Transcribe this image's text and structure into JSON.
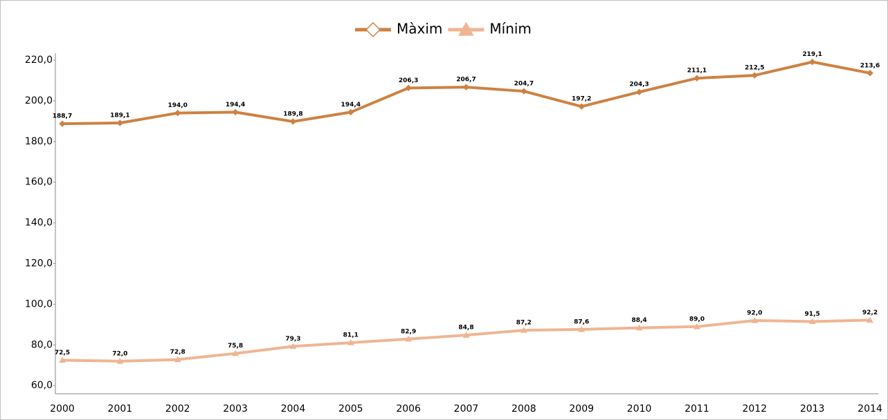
{
  "chart_data": {
    "type": "line",
    "categories": [
      "2000",
      "2001",
      "2002",
      "2003",
      "2004",
      "2005",
      "2006",
      "2007",
      "2008",
      "2009",
      "2010",
      "2011",
      "2012",
      "2013",
      "2014"
    ],
    "series": [
      {
        "name": "Màxim",
        "color": "#cd8142",
        "marker": "diamond",
        "values": [
          188.7,
          189.1,
          194.0,
          194.4,
          189.8,
          194.4,
          206.3,
          206.7,
          204.7,
          197.2,
          204.3,
          211.1,
          212.5,
          219.1,
          213.6
        ],
        "value_labels": [
          "188,7",
          "189,1",
          "194,0",
          "194,4",
          "189,8",
          "194,4",
          "206,3",
          "206,7",
          "204,7",
          "197,2",
          "204,3",
          "211,1",
          "212,5",
          "219,1",
          "213,6"
        ]
      },
      {
        "name": "Mínim",
        "color": "#efb593",
        "marker": "triangle",
        "values": [
          72.5,
          72.0,
          72.8,
          75.8,
          79.3,
          81.1,
          82.9,
          84.8,
          87.2,
          87.6,
          88.4,
          89.0,
          92.0,
          91.5,
          92.2
        ],
        "value_labels": [
          "72,5",
          "72,0",
          "72,8",
          "75,8",
          "79,3",
          "81,1",
          "82,9",
          "84,8",
          "87,2",
          "87,6",
          "88,4",
          "89,0",
          "92,0",
          "91,5",
          "92,2"
        ]
      }
    ],
    "ylim": [
      56,
      220
    ],
    "yticks": [
      {
        "value": 60,
        "label": "60,0"
      },
      {
        "value": 80,
        "label": "80,0"
      },
      {
        "value": 100,
        "label": "100,0"
      },
      {
        "value": 120,
        "label": "120,0"
      },
      {
        "value": 140,
        "label": "140,0"
      },
      {
        "value": 160,
        "label": "160,0"
      },
      {
        "value": 180,
        "label": "180,0"
      },
      {
        "value": 200,
        "label": "200,0"
      },
      {
        "value": 220,
        "label": "220,0"
      }
    ],
    "grid": false,
    "legend": "top"
  }
}
